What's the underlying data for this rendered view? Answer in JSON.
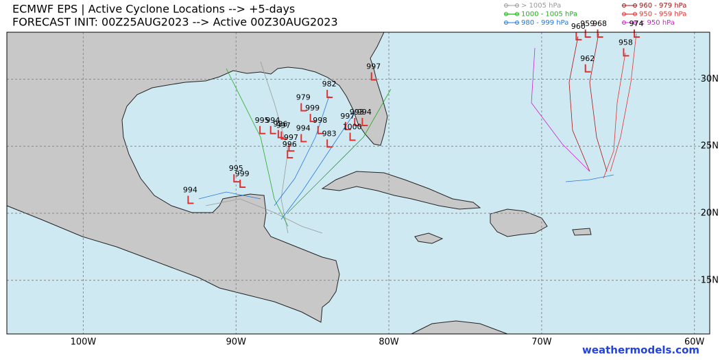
{
  "header": {
    "title": "ECMWF EPS | Active Cyclone Locations --> +5-days",
    "subtitle": "FORECAST INIT: 00Z25AUG2023 --> Active 00Z30AUG2023"
  },
  "legend": [
    {
      "name": "> 1005 hPa",
      "color": "#999999"
    },
    {
      "name": "1000 - 1005 hPa",
      "color": "#22aa22"
    },
    {
      "name": "980 - 999 hPa",
      "color": "#2277dd"
    },
    {
      "name": "960 - 979 hPa",
      "color": "#aa1111"
    },
    {
      "name": "950 - 959 hPa",
      "color": "#dd3333"
    },
    {
      "name": "< 950 hPa",
      "color": "#cc22cc"
    }
  ],
  "map": {
    "lonlim": [
      -105,
      -59
    ],
    "latlim": [
      11,
      33.5
    ],
    "xticks": [
      {
        "value": -100,
        "label": "100W"
      },
      {
        "value": -90,
        "label": "90W"
      },
      {
        "value": -80,
        "label": "80W"
      },
      {
        "value": -70,
        "label": "70W"
      },
      {
        "value": -60,
        "label": "60W"
      }
    ],
    "yticks": [
      {
        "value": 15,
        "label": "15N"
      },
      {
        "value": 20,
        "label": "20N"
      },
      {
        "value": 25,
        "label": "25N"
      },
      {
        "value": 30,
        "label": "30N"
      }
    ],
    "marker_color": "#e03030",
    "storms": [
      {
        "label": "997",
        "lon": -81.0,
        "lat": 30.2
      },
      {
        "label": "982",
        "lon": -83.9,
        "lat": 28.9
      },
      {
        "label": "979",
        "lon": -85.6,
        "lat": 27.9
      },
      {
        "label": "999",
        "lon": -85.0,
        "lat": 27.1
      },
      {
        "label": "998",
        "lon": -84.5,
        "lat": 26.2
      },
      {
        "label": "997",
        "lon": -82.7,
        "lat": 26.5
      },
      {
        "label": "993",
        "lon": -82.1,
        "lat": 26.8
      },
      {
        "label": "994",
        "lon": -81.6,
        "lat": 26.8
      },
      {
        "label": "1000",
        "lon": -82.4,
        "lat": 25.7
      },
      {
        "label": "983",
        "lon": -83.9,
        "lat": 25.2
      },
      {
        "label": "995",
        "lon": -88.3,
        "lat": 26.2
      },
      {
        "label": "994",
        "lon": -87.6,
        "lat": 26.2
      },
      {
        "label": "997",
        "lon": -86.9,
        "lat": 25.8
      },
      {
        "label": "986",
        "lon": -87.1,
        "lat": 25.9
      },
      {
        "label": "994",
        "lon": -85.6,
        "lat": 25.6
      },
      {
        "label": "997",
        "lon": -86.4,
        "lat": 24.9
      },
      {
        "label": "996",
        "lon": -86.5,
        "lat": 24.4
      },
      {
        "label": "995",
        "lon": -90.0,
        "lat": 22.6
      },
      {
        "label": "999",
        "lon": -89.6,
        "lat": 22.2
      },
      {
        "label": "994",
        "lon": -93.0,
        "lat": 21.0
      },
      {
        "label": "960",
        "lon": -67.6,
        "lat": 33.2
      },
      {
        "label": "959",
        "lon": -67.0,
        "lat": 33.4
      },
      {
        "label": "968",
        "lon": -66.2,
        "lat": 33.4
      },
      {
        "label": "974",
        "lon": -63.8,
        "lat": 33.4
      },
      {
        "label": "958",
        "lon": -64.5,
        "lat": 32.0
      },
      {
        "label": "962",
        "lon": -67.0,
        "lat": 30.8
      }
    ]
  },
  "watermark": "weathermodels.com"
}
